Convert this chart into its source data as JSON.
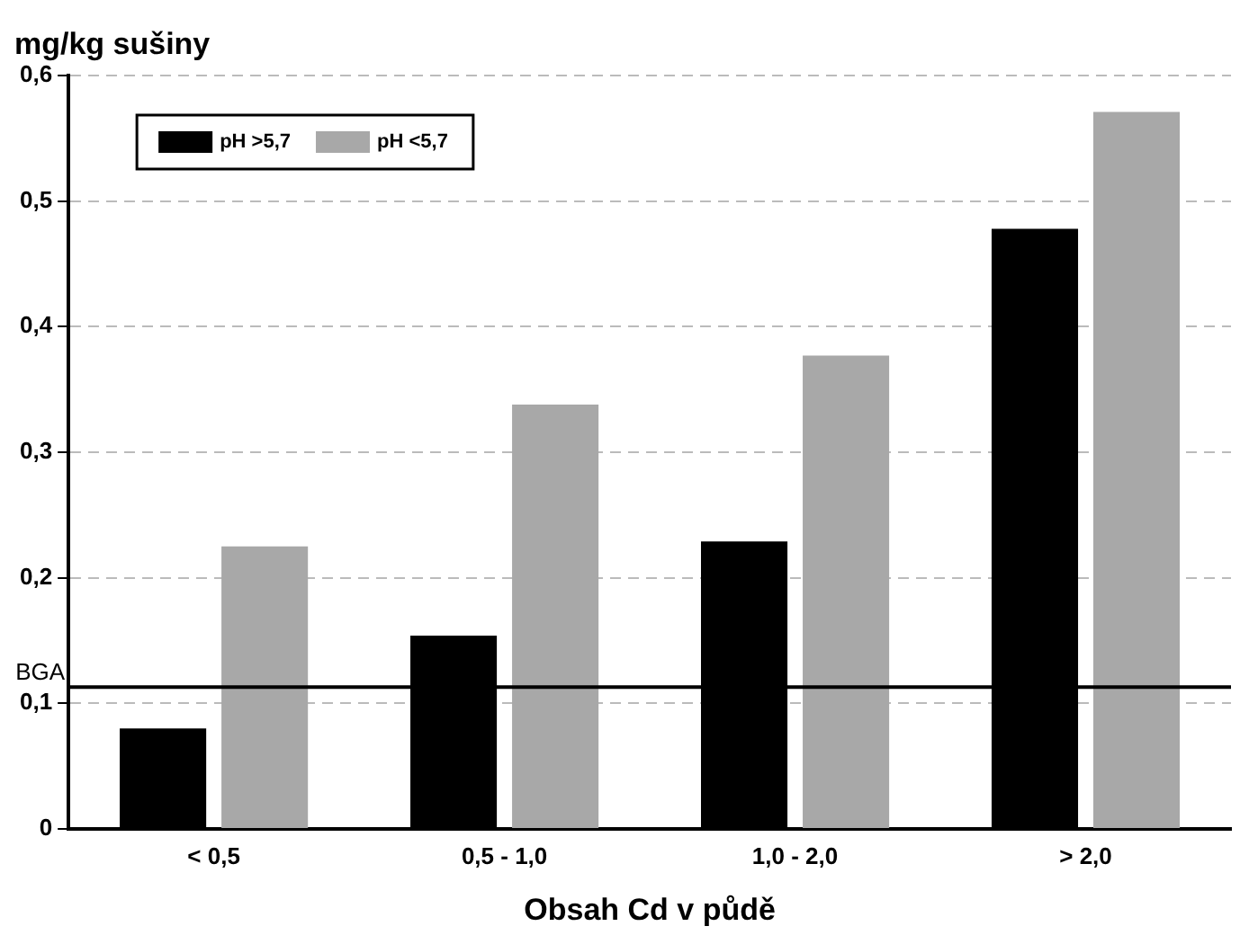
{
  "chart_data": {
    "type": "bar",
    "ylabel": "mg/kg sušiny",
    "xlabel": "Obsah Cd v půdě",
    "categories": [
      "< 0,5",
      "0,5 - 1,0",
      "1,0 - 2,0",
      "> 2,0"
    ],
    "series": [
      {
        "name": "pH >5,7",
        "color": "#000000",
        "values": [
          0.08,
          0.154,
          0.229,
          0.478
        ]
      },
      {
        "name": "pH <5,7",
        "color": "#a8a8a8",
        "values": [
          0.225,
          0.338,
          0.377,
          0.571
        ]
      }
    ],
    "ylim": [
      0,
      0.6
    ],
    "yticks": [
      {
        "value": 0,
        "label": "0"
      },
      {
        "value": 0.1,
        "label": "0,1"
      },
      {
        "value": 0.2,
        "label": "0,2"
      },
      {
        "value": 0.3,
        "label": "0,3"
      },
      {
        "value": 0.4,
        "label": "0,4"
      },
      {
        "value": 0.5,
        "label": "0,5"
      },
      {
        "value": 0.6,
        "label": "0,6"
      }
    ],
    "grid": "y",
    "legend": "top left",
    "ref_lines": [
      {
        "axis": "y",
        "value": 0.113,
        "label": "BGA",
        "color": "#000000"
      }
    ]
  }
}
